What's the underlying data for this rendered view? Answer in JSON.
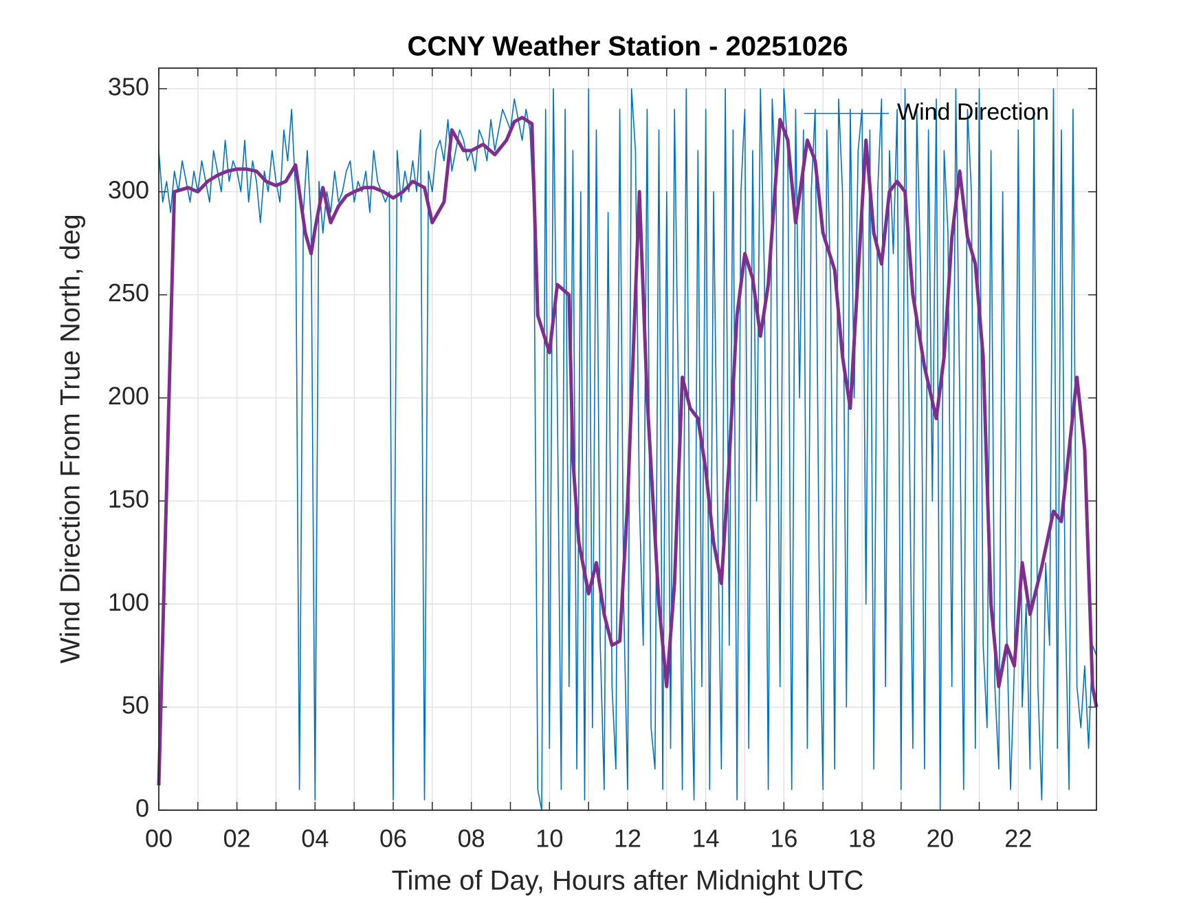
{
  "chart_data": {
    "type": "line",
    "title": "CCNY Weather Station - 20251026",
    "xlabel": "Time of Day, Hours after Midnight UTC",
    "ylabel": "Wind Direction From True North, deg",
    "xlim": [
      0,
      24
    ],
    "xticks": [
      {
        "value": 0,
        "label": "00"
      },
      {
        "value": 2,
        "label": "02"
      },
      {
        "value": 4,
        "label": "04"
      },
      {
        "value": 6,
        "label": "06"
      },
      {
        "value": 8,
        "label": "08"
      },
      {
        "value": 10,
        "label": "10"
      },
      {
        "value": 12,
        "label": "12"
      },
      {
        "value": 14,
        "label": "14"
      },
      {
        "value": 16,
        "label": "16"
      },
      {
        "value": 18,
        "label": "18"
      },
      {
        "value": 20,
        "label": "20"
      },
      {
        "value": 22,
        "label": "22"
      }
    ],
    "xminorticks": [
      1,
      3,
      5,
      7,
      9,
      11,
      13,
      15,
      17,
      19,
      21,
      23
    ],
    "ylim": [
      0,
      360
    ],
    "yticks": [
      0,
      50,
      100,
      150,
      200,
      250,
      300,
      350
    ],
    "grid": true,
    "legend": "northeast",
    "series": [
      {
        "name": "Wind Direction",
        "color": "#0072BD",
        "x": [
          0,
          0.1,
          0.2,
          0.3,
          0.4,
          0.5,
          0.6,
          0.7,
          0.8,
          0.9,
          1,
          1.1,
          1.2,
          1.3,
          1.4,
          1.5,
          1.6,
          1.7,
          1.8,
          1.9,
          2,
          2.1,
          2.2,
          2.3,
          2.4,
          2.5,
          2.6,
          2.7,
          2.8,
          2.9,
          3,
          3.1,
          3.2,
          3.3,
          3.4,
          3.5,
          3.6,
          3.7,
          3.8,
          3.9,
          4,
          4.1,
          4.2,
          4.3,
          4.4,
          4.5,
          4.6,
          4.7,
          4.8,
          4.9,
          5,
          5.1,
          5.2,
          5.3,
          5.4,
          5.5,
          5.6,
          5.7,
          5.8,
          5.9,
          6,
          6.1,
          6.2,
          6.3,
          6.4,
          6.5,
          6.6,
          6.7,
          6.8,
          6.9,
          7,
          7.1,
          7.2,
          7.3,
          7.4,
          7.5,
          7.6,
          7.7,
          7.8,
          7.9,
          8,
          8.1,
          8.2,
          8.3,
          8.4,
          8.5,
          8.6,
          8.7,
          8.8,
          8.9,
          9,
          9.1,
          9.2,
          9.3,
          9.4,
          9.5,
          9.6,
          9.7,
          9.8,
          9.9,
          10,
          10.1,
          10.2,
          10.3,
          10.4,
          10.5,
          10.6,
          10.7,
          10.8,
          10.9,
          11,
          11.1,
          11.2,
          11.3,
          11.4,
          11.5,
          11.6,
          11.7,
          11.8,
          11.9,
          12,
          12.1,
          12.2,
          12.3,
          12.4,
          12.5,
          12.6,
          12.7,
          12.8,
          12.9,
          13,
          13.1,
          13.2,
          13.3,
          13.4,
          13.5,
          13.6,
          13.7,
          13.8,
          13.9,
          14,
          14.1,
          14.2,
          14.3,
          14.4,
          14.5,
          14.6,
          14.7,
          14.8,
          14.9,
          15,
          15.1,
          15.2,
          15.3,
          15.4,
          15.5,
          15.6,
          15.7,
          15.8,
          15.9,
          16,
          16.1,
          16.2,
          16.3,
          16.4,
          16.5,
          16.6,
          16.7,
          16.8,
          16.9,
          17,
          17.1,
          17.2,
          17.3,
          17.4,
          17.5,
          17.6,
          17.7,
          17.8,
          17.9,
          18,
          18.1,
          18.2,
          18.3,
          18.4,
          18.5,
          18.6,
          18.7,
          18.8,
          18.9,
          19,
          19.1,
          19.2,
          19.3,
          19.4,
          19.5,
          19.6,
          19.7,
          19.8,
          19.9,
          20,
          20.1,
          20.2,
          20.3,
          20.4,
          20.5,
          20.6,
          20.7,
          20.8,
          20.9,
          21,
          21.1,
          21.2,
          21.3,
          21.4,
          21.5,
          21.6,
          21.7,
          21.8,
          21.9,
          22,
          22.1,
          22.2,
          22.3,
          22.4,
          22.5,
          22.6,
          22.7,
          22.8,
          22.9,
          23,
          23.1,
          23.2,
          23.3,
          23.4,
          23.5,
          23.6,
          23.7,
          23.8,
          23.9,
          24
        ],
        "values": [
          320,
          295,
          305,
          290,
          310,
          300,
          315,
          305,
          295,
          310,
          300,
          315,
          305,
          295,
          320,
          310,
          300,
          325,
          305,
          315,
          310,
          300,
          325,
          295,
          315,
          305,
          285,
          310,
          300,
          320,
          305,
          295,
          330,
          315,
          340,
          300,
          10,
          290,
          320,
          285,
          5,
          305,
          280,
          300,
          290,
          310,
          295,
          300,
          310,
          315,
          295,
          305,
          300,
          310,
          290,
          320,
          305,
          300,
          295,
          300,
          5,
          320,
          295,
          310,
          300,
          315,
          300,
          330,
          5,
          310,
          300,
          320,
          325,
          315,
          335,
          310,
          320,
          330,
          325,
          315,
          320,
          310,
          330,
          325,
          315,
          335,
          320,
          330,
          340,
          335,
          330,
          345,
          335,
          325,
          340,
          330,
          290,
          10,
          0,
          340,
          30,
          350,
          200,
          10,
          340,
          60,
          320,
          20,
          300,
          5,
          350,
          40,
          330,
          80,
          10,
          290,
          60,
          20,
          340,
          100,
          10,
          350,
          320,
          150,
          80,
          340,
          40,
          20,
          330,
          10,
          300,
          30,
          340,
          200,
          10,
          350,
          100,
          5,
          320,
          60,
          340,
          10,
          300,
          150,
          20,
          350,
          80,
          330,
          5,
          300,
          340,
          30,
          320,
          150,
          350,
          260,
          10,
          345,
          300,
          60,
          350,
          320,
          10,
          340,
          200,
          330,
          30,
          300,
          340,
          120,
          10,
          330,
          250,
          20,
          345,
          300,
          50,
          340,
          200,
          320,
          340,
          100,
          330,
          20,
          300,
          345,
          60,
          320,
          270,
          340,
          10,
          350,
          200,
          30,
          340,
          260,
          20,
          330,
          150,
          345,
          0,
          320,
          280,
          60,
          350,
          200,
          10,
          340,
          300,
          30,
          350,
          80,
          40,
          320,
          60,
          20,
          300,
          90,
          10,
          70,
          330,
          50,
          100,
          20,
          340,
          60,
          5,
          120,
          80,
          350,
          30,
          330,
          100,
          10,
          340,
          60,
          40,
          70,
          30,
          80,
          75
        ]
      },
      {
        "color": "#7E2F8E",
        "x": [
          0,
          0.4,
          0.75,
          1,
          1.25,
          1.5,
          1.75,
          2,
          2.25,
          2.5,
          2.75,
          3,
          3.25,
          3.5,
          3.75,
          3.9,
          4,
          4.2,
          4.4,
          4.6,
          4.8,
          5,
          5.25,
          5.5,
          5.75,
          6,
          6.25,
          6.5,
          6.8,
          7,
          7.3,
          7.5,
          7.8,
          8,
          8.3,
          8.6,
          8.9,
          9.1,
          9.3,
          9.55,
          9.7,
          10,
          10.2,
          10.5,
          10.6,
          10.75,
          11,
          11.2,
          11.4,
          11.6,
          11.8,
          12,
          12.3,
          12.5,
          12.8,
          13,
          13.2,
          13.4,
          13.6,
          13.8,
          14,
          14.2,
          14.4,
          14.6,
          14.8,
          15,
          15.2,
          15.4,
          15.6,
          15.9,
          16.1,
          16.3,
          16.6,
          16.8,
          17,
          17.3,
          17.5,
          17.7,
          17.9,
          18.1,
          18.3,
          18.5,
          18.7,
          18.9,
          19.1,
          19.3,
          19.6,
          19.9,
          20.1,
          20.3,
          20.5,
          20.7,
          20.9,
          21.1,
          21.3,
          21.5,
          21.7,
          21.9,
          22.1,
          22.3,
          22.6,
          22.9,
          23.1,
          23.3,
          23.5,
          23.7,
          23.9,
          24
        ],
        "values": [
          12,
          300,
          302,
          300,
          305,
          308,
          310,
          311,
          311,
          310,
          305,
          303,
          305,
          313,
          280,
          270,
          282,
          302,
          285,
          293,
          298,
          300,
          302,
          302,
          300,
          297,
          300,
          305,
          302,
          285,
          295,
          330,
          320,
          320,
          323,
          318,
          325,
          334,
          336,
          333,
          240,
          222,
          255,
          250,
          170,
          130,
          105,
          120,
          95,
          80,
          82,
          150,
          300,
          200,
          100,
          60,
          110,
          210,
          195,
          190,
          165,
          130,
          110,
          170,
          240,
          270,
          258,
          230,
          255,
          335,
          325,
          285,
          325,
          315,
          280,
          262,
          220,
          195,
          260,
          325,
          280,
          265,
          300,
          305,
          300,
          250,
          215,
          190,
          220,
          278,
          310,
          278,
          265,
          220,
          100,
          60,
          80,
          70,
          120,
          95,
          118,
          145,
          140,
          175,
          210,
          175,
          60,
          50
        ]
      }
    ]
  }
}
